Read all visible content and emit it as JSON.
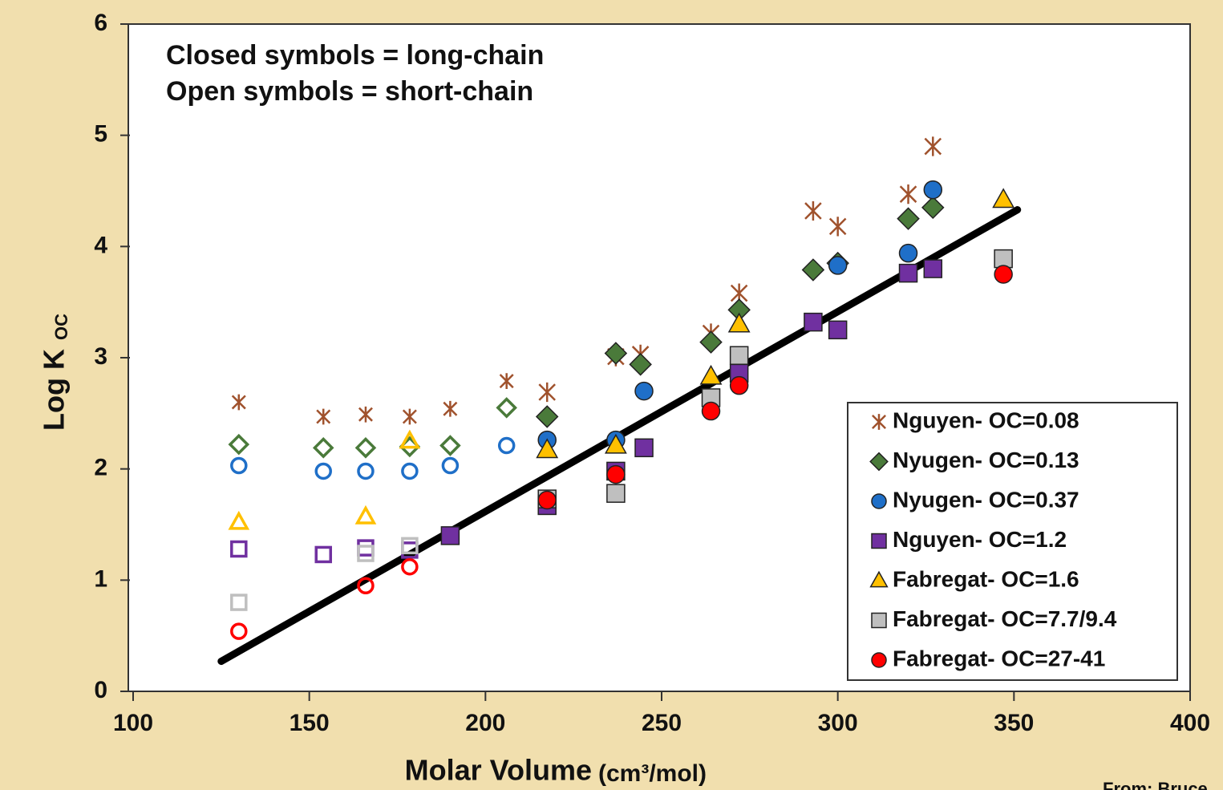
{
  "chart_data": {
    "type": "scatter",
    "annotations": [
      "Closed symbols = long-chain",
      "Open symbols = short-chain"
    ],
    "ylabel": "Log K",
    "ylabel_sub": "OC",
    "xlabel": "Molar Volume",
    "xlabel_unit": "(cm³/mol)",
    "source": "From: Bruce",
    "xlim": [
      100,
      400
    ],
    "xticks": [
      100,
      150,
      200,
      250,
      300,
      350,
      400
    ],
    "ylim": [
      0,
      6
    ],
    "yticks": [
      0,
      1,
      2,
      3,
      4,
      5,
      6
    ],
    "series": [
      {
        "name": "Nguyen- OC=0.08",
        "color": "#a0522d",
        "marker": "asterisk",
        "x": [
          130,
          154,
          166,
          178.5,
          190,
          206,
          217.5,
          237,
          244,
          264,
          272,
          293,
          300,
          320,
          327
        ],
        "values": [
          2.6,
          2.47,
          2.49,
          2.47,
          2.54,
          2.79,
          2.69,
          3.01,
          3.03,
          3.22,
          3.58,
          4.32,
          4.18,
          4.47,
          4.9
        ],
        "open": [
          true,
          true,
          true,
          true,
          true,
          true,
          false,
          false,
          false,
          false,
          false,
          false,
          false,
          false,
          false
        ]
      },
      {
        "name": "Nyugen- OC=0.13",
        "color": "#4a7a3a",
        "marker": "diamond",
        "x": [
          130,
          154,
          166,
          178.5,
          190,
          206,
          217.5,
          237,
          244,
          264,
          272,
          293,
          300,
          320,
          327
        ],
        "values": [
          2.22,
          2.19,
          2.19,
          2.2,
          2.21,
          2.55,
          2.47,
          3.04,
          2.94,
          3.14,
          3.43,
          3.79,
          3.85,
          4.25,
          4.35
        ],
        "open": [
          true,
          true,
          true,
          true,
          true,
          true,
          false,
          false,
          false,
          false,
          false,
          false,
          false,
          false,
          false
        ]
      },
      {
        "name": "Nyugen- OC=0.37",
        "color": "#1f6fc8",
        "marker": "circle",
        "x": [
          130,
          154,
          166,
          178.5,
          190,
          206,
          217.5,
          237,
          245,
          300,
          320,
          327
        ],
        "values": [
          2.03,
          1.98,
          1.98,
          1.98,
          2.03,
          2.21,
          2.26,
          2.26,
          2.7,
          3.83,
          3.94,
          4.51
        ],
        "open": [
          true,
          true,
          true,
          true,
          true,
          true,
          false,
          false,
          false,
          false,
          false,
          false
        ]
      },
      {
        "name": "Nguyen- OC=1.2",
        "color": "#7030a0",
        "marker": "square",
        "x": [
          130,
          154,
          166,
          178.5,
          190,
          217.5,
          237,
          245,
          272,
          293,
          300,
          320,
          327
        ],
        "values": [
          1.28,
          1.23,
          1.29,
          1.27,
          1.4,
          1.67,
          1.98,
          2.19,
          2.86,
          3.32,
          3.25,
          3.76,
          3.8
        ],
        "open": [
          true,
          true,
          true,
          true,
          false,
          false,
          false,
          false,
          false,
          false,
          false,
          false,
          false
        ]
      },
      {
        "name": "Fabregat- OC=1.6",
        "color": "#ffc000",
        "marker": "triangle",
        "x": [
          130,
          166,
          178.5,
          217.5,
          237,
          264,
          272,
          347
        ],
        "values": [
          1.52,
          1.57,
          2.25,
          2.17,
          2.21,
          2.83,
          3.3,
          4.42
        ],
        "open": [
          true,
          true,
          true,
          false,
          false,
          false,
          false,
          false
        ]
      },
      {
        "name": "Fabregat- OC=7.7/9.4",
        "color": "#bfbfbf",
        "marker": "square",
        "x": [
          130,
          166,
          178.5,
          217.5,
          237,
          264,
          272,
          347
        ],
        "values": [
          0.8,
          1.24,
          1.31,
          1.73,
          1.78,
          2.64,
          3.02,
          3.89
        ],
        "open": [
          true,
          true,
          true,
          false,
          false,
          false,
          false,
          false
        ]
      },
      {
        "name": "Fabregat- OC=27-41",
        "color": "#ff0000",
        "marker": "circle",
        "x": [
          130,
          166,
          178.5,
          217.5,
          237,
          264,
          272,
          347
        ],
        "values": [
          0.54,
          0.95,
          1.12,
          1.72,
          1.95,
          2.52,
          2.75,
          3.75
        ],
        "open": [
          true,
          true,
          true,
          false,
          false,
          false,
          false,
          false
        ]
      }
    ],
    "trend_line": {
      "x": [
        125,
        351
      ],
      "values": [
        0.27,
        4.33
      ],
      "color": "#000000"
    }
  }
}
